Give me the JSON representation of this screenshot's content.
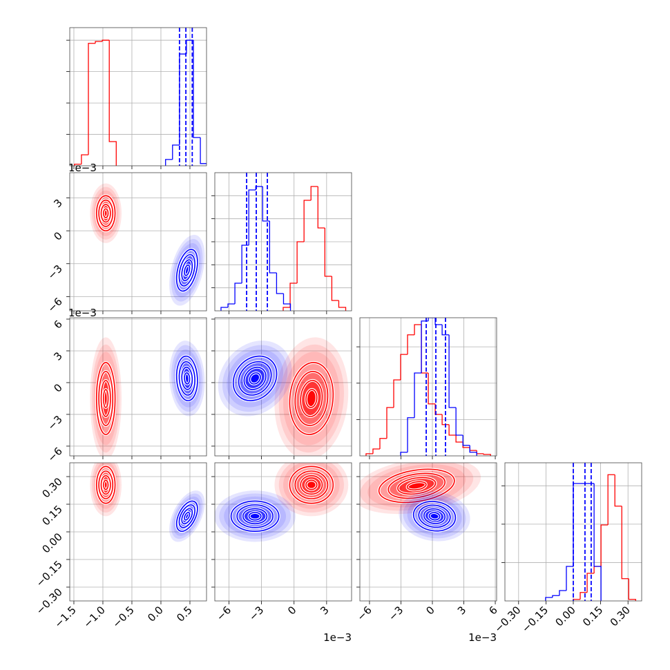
{
  "chart_data": {
    "type": "corner",
    "grid": true,
    "colors": [
      "red",
      "blue"
    ],
    "params": [
      {
        "lim": [
          -1.571,
          0.786
        ],
        "ticks": [
          {
            "value": -1.5,
            "label": "−1.5"
          },
          {
            "value": -1.0,
            "label": "−1.0"
          },
          {
            "value": -0.5,
            "label": "−0.5"
          },
          {
            "value": 0.0,
            "label": "0.0"
          },
          0.5
        ]
      },
      {
        "lim": [
          -7.3,
          5.3
        ],
        "offset": "1e−3",
        "ticks": [
          {
            "value": -6,
            "label": "−6"
          },
          {
            "value": -3,
            "label": "−3"
          },
          0,
          3
        ]
      },
      {
        "lim": [
          -6.92,
          6.13
        ],
        "offset": "1e−3",
        "ticks": [
          {
            "value": -6,
            "label": "−6"
          },
          {
            "value": -3,
            "label": "−3"
          },
          0,
          3,
          6
        ]
      },
      {
        "lim": [
          -0.375,
          0.375
        ],
        "ticks": [
          {
            "value": -0.3,
            "label": "−0.30"
          },
          {
            "value": -0.15,
            "label": "−0.15"
          },
          {
            "value": 0.0,
            "label": "0.00"
          },
          {
            "value": 0.15,
            "label": "0.15"
          },
          {
            "value": 0.3,
            "label": "0.30"
          }
        ]
      }
    ],
    "diagonals": [
      {
        "ylim": [
          0,
          4.4
        ],
        "yticks": [
          1,
          2,
          3,
          4
        ],
        "series": [
          {
            "bins": [
              -1.49,
              -1.37,
              -1.25,
              -1.13,
              -1.01,
              -0.89,
              -0.77
            ],
            "counts": [
              0.05,
              0.35,
              3.9,
              3.96,
              4.0,
              0.77
            ]
          },
          {
            "bins": [
              0.08,
              0.2,
              0.32,
              0.44,
              0.56,
              0.68,
              0.8
            ],
            "counts": [
              0.2,
              0.66,
              3.56,
              4.0,
              0.9,
              0.07
            ],
            "quantiles": [
              0.32,
              0.43,
              0.54
            ]
          }
        ]
      },
      {
        "ylim": [
          0,
          6
        ],
        "yticks": [
          1,
          2,
          3,
          4,
          5
        ],
        "series": [
          {
            "bins": [
              -1.0,
              -0.36,
              0.28,
              0.92,
              1.56,
              2.2,
              2.84,
              3.48,
              4.12,
              4.76
            ],
            "counts": [
              0.15,
              1.2,
              3.0,
              4.8,
              5.4,
              3.6,
              1.5,
              0.45,
              0.15
            ]
          },
          {
            "bins": [
              -6.73,
              -6.09,
              -5.45,
              -4.81,
              -4.17,
              -3.53,
              -2.89,
              -2.25,
              -1.61,
              -0.97,
              -0.33
            ],
            "counts": [
              0.15,
              0.3,
              1.2,
              2.85,
              5.25,
              5.4,
              3.9,
              1.65,
              0.75,
              0.3
            ],
            "quantiles": [
              -4.37,
              -3.48,
              -2.46
            ]
          }
        ]
      },
      {
        "ylim": [
          0,
          3.8
        ],
        "yticks": [
          1,
          2,
          3
        ],
        "series": [
          {
            "bins": [
              -6.33,
              -5.67,
              -5.01,
              -4.35,
              -3.69,
              -3.03,
              -2.37,
              -1.71,
              -1.05,
              -0.39,
              0.27,
              0.93,
              1.59,
              2.25,
              2.91,
              3.57,
              4.23,
              4.89,
              5.55
            ],
            "counts": [
              0.06,
              0.19,
              0.48,
              1.33,
              2.09,
              2.79,
              3.33,
              3.61,
              2.28,
              1.43,
              1.14,
              0.86,
              0.57,
              0.38,
              0.23,
              0.15,
              0.06,
              0.04
            ]
          },
          {
            "bins": [
              -3.03,
              -2.37,
              -1.71,
              -1.05,
              -0.39,
              0.27,
              0.93,
              1.59,
              2.25,
              2.91,
              3.57,
              4.23
            ],
            "counts": [
              0.1,
              1.05,
              2.28,
              3.71,
              3.8,
              3.61,
              3.33,
              1.33,
              0.57,
              0.29,
              0.1
            ],
            "quantiles": [
              -0.59,
              0.33,
              1.25
            ]
          }
        ]
      },
      {
        "ylim": [
          0,
          3.6
        ],
        "yticks": [
          1,
          2,
          3
        ],
        "series": [
          {
            "bins": [
              0.0,
              0.038,
              0.076,
              0.114,
              0.152,
              0.19,
              0.228,
              0.266,
              0.304,
              0.342
            ],
            "counts": [
              0.04,
              0.22,
              0.72,
              0.9,
              1.98,
              3.29,
              2.47,
              0.58,
              0.04
            ]
          },
          {
            "bins": [
              -0.152,
              -0.114,
              -0.076,
              -0.038,
              0.0,
              0.038,
              0.076,
              0.114,
              0.152
            ],
            "counts": [
              0.09,
              0.14,
              0.27,
              0.9,
              3.06,
              3.06,
              3.06,
              0.9
            ],
            "quantiles": [
              0.0,
              0.064,
              0.098
            ]
          }
        ]
      }
    ],
    "panels": [
      {
        "blobs": [
          {
            "x": -0.95,
            "y": 1.6,
            "sx": 0.08,
            "sy": 0.8,
            "rho": 0
          },
          {
            "x": 0.45,
            "y": -3.6,
            "sx": 0.09,
            "sy": 0.95,
            "rho": 0.4
          }
        ]
      },
      {
        "blobs": [
          {
            "x": -0.95,
            "y": -1.5,
            "sx": 0.08,
            "sy": 1.7,
            "rho": 0
          },
          {
            "x": 0.45,
            "y": 0.4,
            "sx": 0.09,
            "sy": 1.05,
            "rho": -0.1
          }
        ]
      },
      {
        "blobs": [
          {
            "x": 1.6,
            "y": -1.5,
            "sx": 1.0,
            "sy": 1.7,
            "rho": 0.1
          },
          {
            "x": -3.6,
            "y": 0.4,
            "sx": 1.0,
            "sy": 1.05,
            "rho": 0.2
          }
        ]
      },
      {
        "blobs": [
          {
            "x": -0.95,
            "y": 0.255,
            "sx": 0.08,
            "sy": 0.05,
            "rho": 0
          },
          {
            "x": 0.45,
            "y": 0.085,
            "sx": 0.09,
            "sy": 0.041,
            "rho": 0.5
          }
        ]
      },
      {
        "blobs": [
          {
            "x": 1.6,
            "y": 0.255,
            "sx": 1.0,
            "sy": 0.05,
            "rho": 0
          },
          {
            "x": -3.6,
            "y": 0.085,
            "sx": 1.1,
            "sy": 0.041,
            "rho": 0
          }
        ]
      },
      {
        "blobs": [
          {
            "x": -1.5,
            "y": 0.25,
            "sx": 1.8,
            "sy": 0.045,
            "rho": 0.3
          },
          {
            "x": 0.2,
            "y": 0.085,
            "sx": 1.0,
            "sy": 0.04,
            "rho": -0.1
          }
        ]
      }
    ]
  }
}
